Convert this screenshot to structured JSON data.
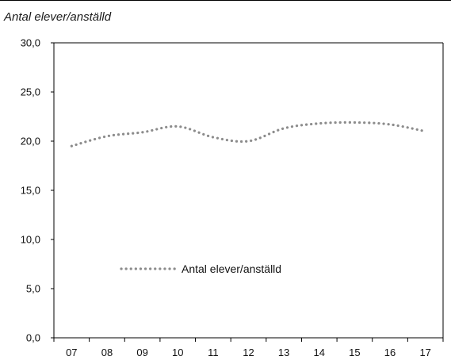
{
  "chart_data": {
    "type": "line",
    "title": "Antal elever/anställd",
    "xlabel": "",
    "ylabel": "",
    "categories": [
      "07",
      "08",
      "09",
      "10",
      "11",
      "12",
      "13",
      "14",
      "15",
      "16",
      "17"
    ],
    "ylim": [
      0,
      30
    ],
    "y_ticks": [
      "0,0",
      "5,0",
      "10,0",
      "15,0",
      "20,0",
      "25,0",
      "30,0"
    ],
    "series": [
      {
        "name": "Antal elever/anställd",
        "values": [
          19.5,
          20.5,
          20.9,
          21.5,
          20.4,
          20.0,
          21.3,
          21.8,
          21.9,
          21.7,
          21.0
        ],
        "color": "#8c8c8c",
        "style": "dotted"
      }
    ],
    "legend": "inside-lower-left",
    "grid": false
  }
}
